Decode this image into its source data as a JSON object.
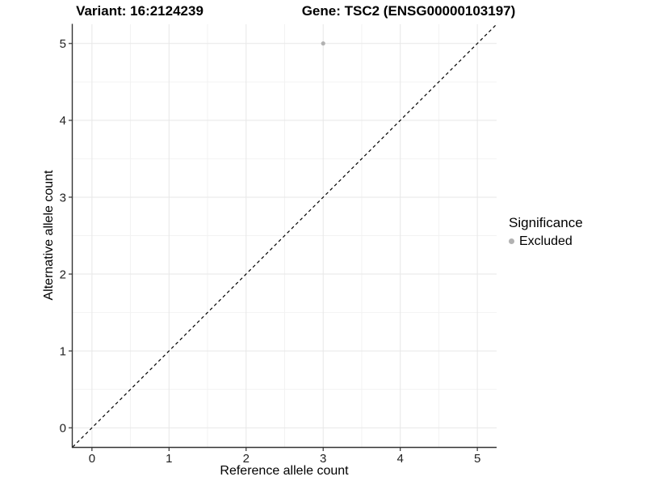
{
  "header": {
    "variant_title": "Variant: 16:2124239",
    "gene_title": "Gene: TSC2 (ENSG00000103197)"
  },
  "chart_data": {
    "type": "scatter",
    "title": "Variant: 16:2124239  |  Gene: TSC2 (ENSG00000103197)",
    "xlabel": "Reference allele count",
    "ylabel": "Alternative allele count",
    "xlim": [
      -0.25,
      5.25
    ],
    "ylim": [
      -0.25,
      5.25
    ],
    "x_ticks": [
      0,
      1,
      2,
      3,
      4,
      5
    ],
    "y_ticks": [
      0,
      1,
      2,
      3,
      4,
      5
    ],
    "x_minor_ticks": [
      0.5,
      1.5,
      2.5,
      3.5,
      4.5
    ],
    "y_minor_ticks": [
      0.5,
      1.5,
      2.5,
      3.5,
      4.5
    ],
    "grid": true,
    "points": [
      {
        "x": 3,
        "y": 5,
        "series": "Excluded"
      }
    ],
    "reference_line": {
      "type": "identity",
      "style": "dashed",
      "x1": -0.25,
      "y1": -0.25,
      "x2": 5.25,
      "y2": 5.25
    },
    "legend": {
      "title": "Significance",
      "position": "right",
      "entries": [
        {
          "label": "Excluded",
          "color": "#b2b2b2"
        }
      ]
    },
    "colors": {
      "point": "#b2b2b2",
      "grid_major": "#e7e7e7",
      "grid_minor": "#f2f2f2",
      "axis_line": "#333333",
      "reference_line": "#000000",
      "background": "#ffffff",
      "text": "#000000"
    }
  }
}
